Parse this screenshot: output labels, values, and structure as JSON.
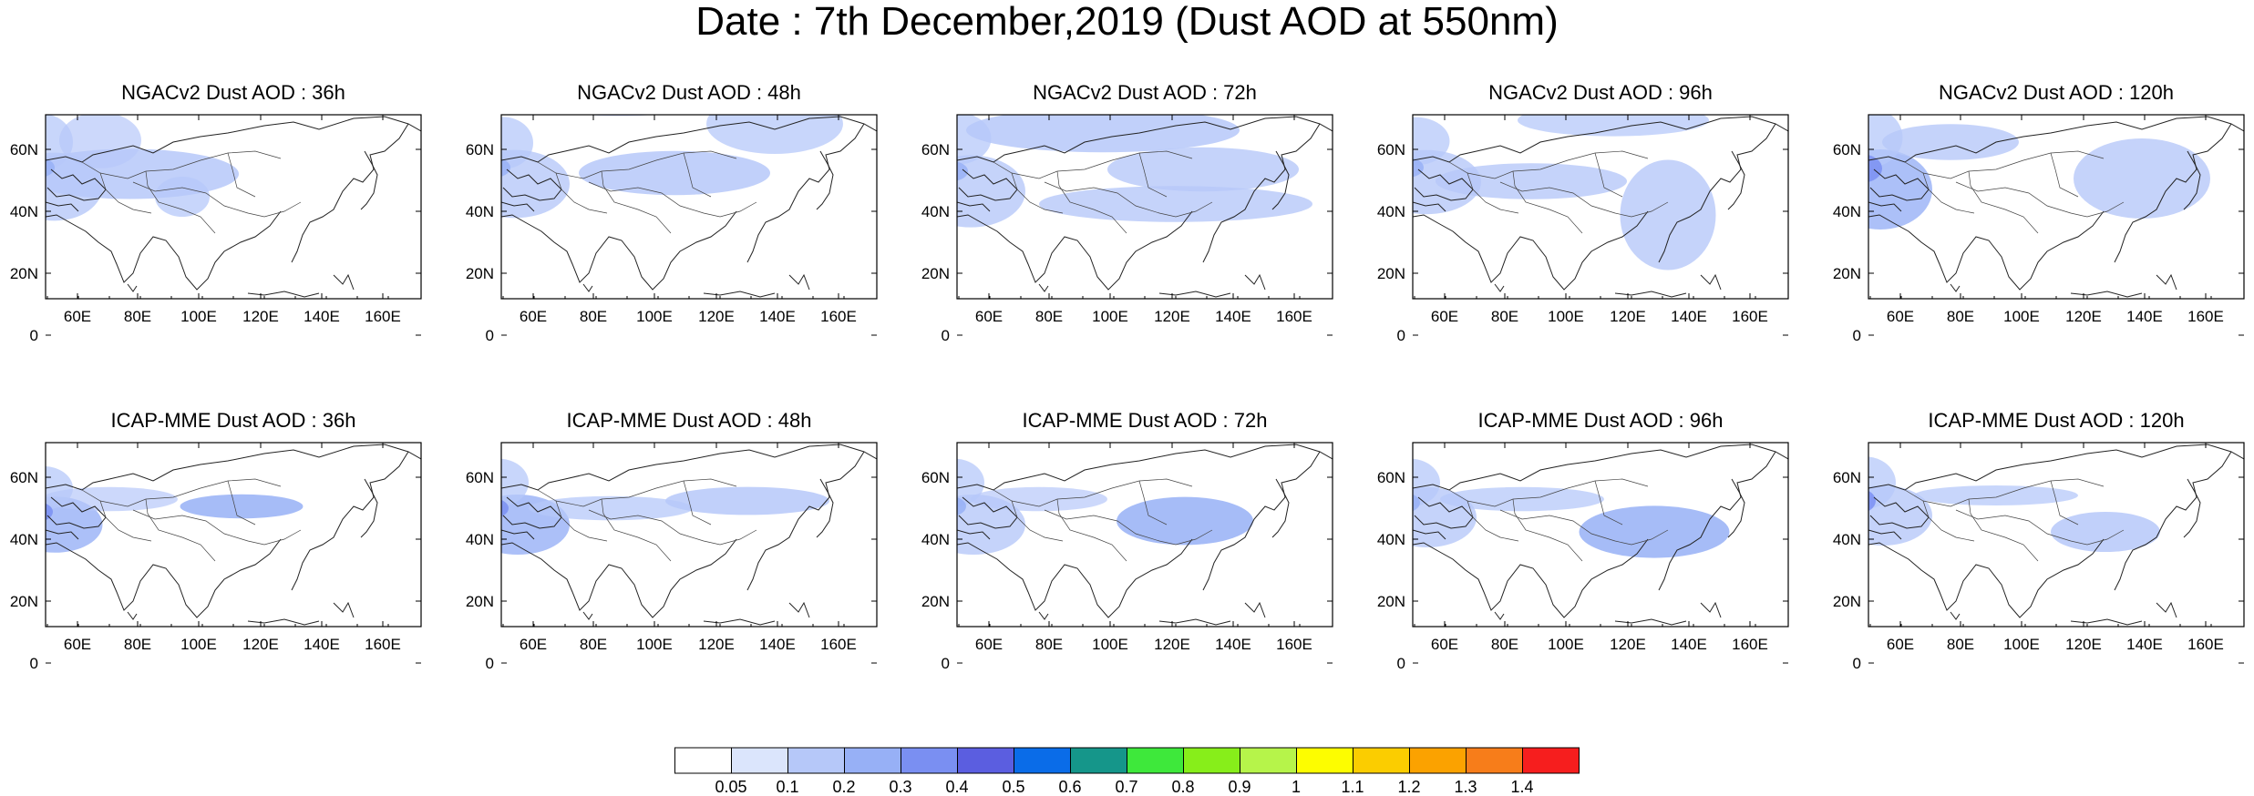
{
  "title": "Date : 7th December,2019 (Dust AOD at 550nm)",
  "lat_labels": [
    "60N",
    "40N",
    "20N",
    "0"
  ],
  "lon_labels": [
    "60E",
    "80E",
    "100E",
    "120E",
    "140E",
    "160E"
  ],
  "panels": [
    {
      "title": "NGACv2 Dust AOD : 36h",
      "model": "NGACv2",
      "lead": "36h",
      "patches": [
        [
          -25,
          45,
          35,
          34,
          0.5,
          0.22
        ],
        [
          -25,
          2,
          22,
          28,
          0.4,
          0.22
        ],
        [
          12,
          40,
          80,
          25,
          0.6,
          0.16
        ],
        [
          30,
          0,
          30,
          28,
          0.3,
          0.18
        ],
        [
          130,
          70,
          20,
          20,
          0.4,
          0.12
        ],
        [
          -20,
          48,
          12,
          10,
          0.55,
          0.35
        ]
      ]
    },
    {
      "title": "NGACv2 Dust AOD : 48h",
      "model": "NGACv2",
      "lead": "48h",
      "patches": [
        [
          -25,
          42,
          40,
          34,
          0.5,
          0.22
        ],
        [
          -20,
          5,
          22,
          26,
          0.4,
          0.22
        ],
        [
          120,
          42,
          70,
          22,
          0.6,
          0.2
        ],
        [
          250,
          -20,
          50,
          30,
          0.4,
          0.18
        ],
        [
          70,
          -28,
          60,
          14,
          0.3,
          0.14
        ],
        [
          -20,
          48,
          12,
          10,
          0.55,
          0.35
        ]
      ]
    },
    {
      "title": "NGACv2 Dust AOD : 72h",
      "model": "NGACv2",
      "lead": "72h",
      "patches": [
        [
          -25,
          48,
          40,
          36,
          0.5,
          0.2
        ],
        [
          -25,
          0,
          25,
          26,
          0.4,
          0.18
        ],
        [
          60,
          -5,
          100,
          22,
          0.6,
          0.2
        ],
        [
          200,
          38,
          70,
          22,
          0.5,
          0.2
        ],
        [
          140,
          80,
          100,
          18,
          0.5,
          0.14
        ],
        [
          -18,
          52,
          12,
          10,
          0.55,
          0.3
        ]
      ]
    },
    {
      "title": "NGACv2 Dust AOD : 96h",
      "model": "NGACv2",
      "lead": "96h",
      "patches": [
        [
          -25,
          42,
          40,
          32,
          0.5,
          0.22
        ],
        [
          -22,
          5,
          25,
          24,
          0.4,
          0.2
        ],
        [
          60,
          55,
          70,
          18,
          0.5,
          0.16
        ],
        [
          245,
          55,
          35,
          55,
          0.5,
          0.2
        ],
        [
          150,
          -10,
          70,
          16,
          0.4,
          0.14
        ],
        [
          -18,
          48,
          12,
          10,
          0.55,
          0.3
        ]
      ]
    },
    {
      "title": "NGACv2 Dust AOD : 120h",
      "model": "NGACv2",
      "lead": "120h",
      "patches": [
        [
          -25,
          42,
          38,
          40,
          0.5,
          0.24
        ],
        [
          -25,
          -5,
          25,
          30,
          0.4,
          0.22
        ],
        [
          40,
          12,
          50,
          18,
          0.5,
          0.14
        ],
        [
          250,
          30,
          50,
          40,
          0.5,
          0.2
        ],
        [
          100,
          -30,
          50,
          14,
          0.3,
          0.14
        ],
        [
          -20,
          45,
          14,
          14,
          0.6,
          0.45
        ]
      ]
    },
    {
      "title": "ICAP-MME Dust AOD : 36h",
      "model": "ICAP-MME",
      "lead": "36h",
      "patches": [
        [
          -25,
          62,
          35,
          28,
          0.5,
          0.25
        ],
        [
          -25,
          28,
          22,
          22,
          0.4,
          0.22
        ],
        [
          170,
          58,
          45,
          12,
          0.6,
          0.3
        ],
        [
          20,
          50,
          50,
          12,
          0.3,
          0.14
        ],
        [
          -22,
          66,
          12,
          10,
          0.6,
          0.5
        ]
      ]
    },
    {
      "title": "ICAP-MME Dust AOD : 48h",
      "model": "ICAP-MME",
      "lead": "48h",
      "patches": [
        [
          -20,
          60,
          38,
          30,
          0.5,
          0.25
        ],
        [
          -25,
          20,
          22,
          24,
          0.4,
          0.22
        ],
        [
          210,
          50,
          60,
          14,
          0.6,
          0.2
        ],
        [
          60,
          60,
          60,
          12,
          0.4,
          0.14
        ],
        [
          -22,
          62,
          12,
          10,
          0.6,
          0.4
        ]
      ]
    },
    {
      "title": "ICAP-MME Dust AOD : 72h",
      "model": "ICAP-MME",
      "lead": "72h",
      "patches": [
        [
          -20,
          60,
          38,
          30,
          0.5,
          0.22
        ],
        [
          -25,
          20,
          22,
          24,
          0.4,
          0.22
        ],
        [
          200,
          62,
          50,
          24,
          0.6,
          0.28
        ],
        [
          40,
          50,
          50,
          12,
          0.3,
          0.12
        ],
        [
          -20,
          60,
          12,
          10,
          0.6,
          0.35
        ]
      ]
    },
    {
      "title": "ICAP-MME Dust AOD : 96h",
      "model": "ICAP-MME",
      "lead": "96h",
      "patches": [
        [
          -20,
          52,
          36,
          30,
          0.5,
          0.22
        ],
        [
          -25,
          20,
          22,
          24,
          0.4,
          0.22
        ],
        [
          210,
          72,
          55,
          26,
          0.6,
          0.26
        ],
        [
          60,
          50,
          60,
          12,
          0.4,
          0.12
        ],
        [
          -22,
          56,
          12,
          10,
          0.6,
          0.35
        ]
      ]
    },
    {
      "title": "ICAP-MME Dust AOD : 120h",
      "model": "ICAP-MME",
      "lead": "120h",
      "patches": [
        [
          -20,
          50,
          36,
          30,
          0.5,
          0.2
        ],
        [
          -25,
          18,
          22,
          26,
          0.4,
          0.22
        ],
        [
          220,
          78,
          40,
          20,
          0.6,
          0.2
        ],
        [
          80,
          48,
          60,
          10,
          0.4,
          0.12
        ],
        [
          -22,
          52,
          12,
          12,
          0.6,
          0.4
        ]
      ]
    }
  ],
  "colorbar": {
    "labels": [
      "0.05",
      "0.1",
      "0.2",
      "0.3",
      "0.4",
      "0.5",
      "0.6",
      "0.7",
      "0.8",
      "0.9",
      "1",
      "1.1",
      "1.2",
      "1.3",
      "1.4"
    ],
    "colors": [
      "#ffffff",
      "#dbe5fc",
      "#b6c8f9",
      "#97b0f6",
      "#7a8ff2",
      "#5b5ee0",
      "#0a6ce8",
      "#15968a",
      "#3ee83b",
      "#87ee1a",
      "#b6f44a",
      "#fdfd00",
      "#fbcd00",
      "#fba200",
      "#f77d1a",
      "#f61e1e"
    ]
  }
}
